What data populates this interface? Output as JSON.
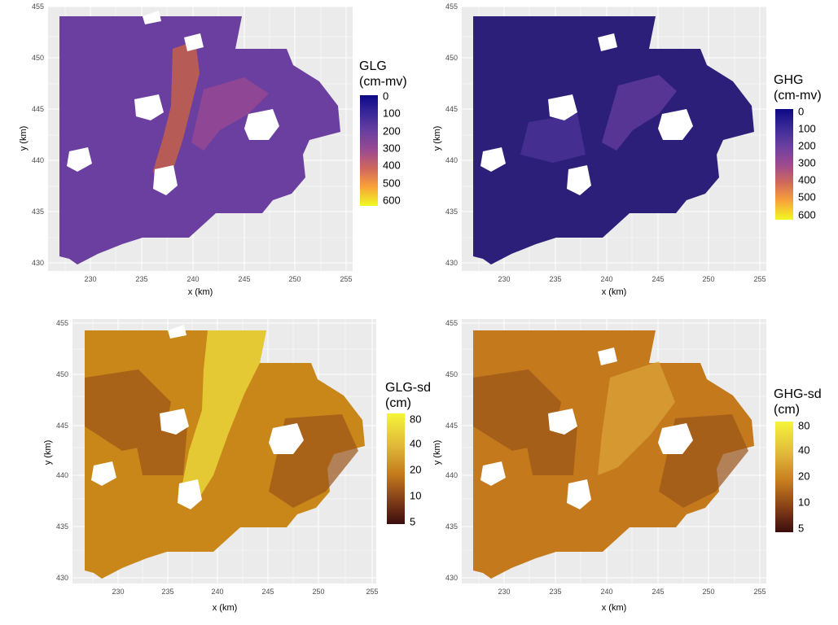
{
  "figure": {
    "panels": [
      {
        "id": "glg",
        "legend_title_line1": "GLG",
        "legend_title_line2": "(cm-mv)",
        "legend_labels": [
          "0",
          "100",
          "200",
          "300",
          "400",
          "500",
          "600"
        ],
        "palette": "plasma_reversed",
        "x_axis_label": "x (km)",
        "y_axis_label": "y (km)"
      },
      {
        "id": "ghg",
        "legend_title_line1": "GHG",
        "legend_title_line2": "(cm-mv)",
        "legend_labels": [
          "0",
          "100",
          "200",
          "300",
          "400",
          "500",
          "600"
        ],
        "palette": "plasma_reversed",
        "x_axis_label": "x (km)",
        "y_axis_label": "y (km)"
      },
      {
        "id": "glg-sd",
        "legend_title_line1": "GLG-sd",
        "legend_title_line2": "(cm)",
        "legend_labels": [
          "80",
          "40",
          "20",
          "10",
          "5"
        ],
        "palette": "heat",
        "x_axis_label": "x (km)",
        "y_axis_label": "y (km)"
      },
      {
        "id": "ghg-sd",
        "legend_title_line1": "GHG-sd",
        "legend_title_line2": "(cm)",
        "legend_labels": [
          "80",
          "40",
          "20",
          "10",
          "5"
        ],
        "palette": "heat",
        "x_axis_label": "x (km)",
        "y_axis_label": "y (km)"
      }
    ],
    "x_ticks": [
      "230",
      "235",
      "240",
      "245",
      "250",
      "255"
    ],
    "y_ticks": [
      "455",
      "450",
      "445",
      "440",
      "435",
      "430"
    ],
    "colors": {
      "panel_background": "#ebebeb",
      "grid": "#ffffff",
      "glg_base": "#6a3fa0",
      "ghg_base": "#2b1f7a",
      "sd_base": "#c9871a"
    }
  }
}
